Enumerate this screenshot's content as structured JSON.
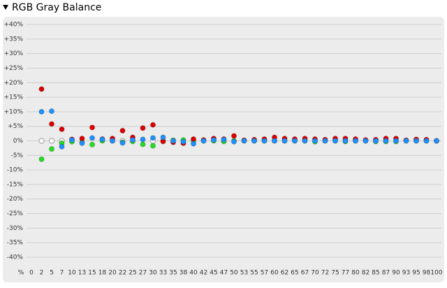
{
  "title": "RGB Gray Balance",
  "chart_data": {
    "type": "scatter",
    "x_axis_label": "%",
    "categories": [
      "0",
      "2",
      "5",
      "7",
      "10",
      "13",
      "15",
      "18",
      "20",
      "22",
      "25",
      "27",
      "30",
      "33",
      "35",
      "38",
      "40",
      "42",
      "45",
      "47",
      "50",
      "53",
      "55",
      "57",
      "60",
      "62",
      "65",
      "67",
      "70",
      "72",
      "75",
      "77",
      "80",
      "82",
      "85",
      "87",
      "90",
      "93",
      "95",
      "98",
      "100"
    ],
    "ylim": [
      -42,
      42
    ],
    "yticks": [
      {
        "value": 40,
        "label": "+40%"
      },
      {
        "value": 35,
        "label": "+35%"
      },
      {
        "value": 30,
        "label": "+30%"
      },
      {
        "value": 25,
        "label": "+25%"
      },
      {
        "value": 20,
        "label": "+20%"
      },
      {
        "value": 15,
        "label": "+15%"
      },
      {
        "value": 10,
        "label": "+10%"
      },
      {
        "value": 5,
        "label": "+5%"
      },
      {
        "value": 0,
        "label": "0%"
      },
      {
        "value": -5,
        "label": "-5%"
      },
      {
        "value": -10,
        "label": "-10%"
      },
      {
        "value": -15,
        "label": "-15%"
      },
      {
        "value": -20,
        "label": "-20%"
      },
      {
        "value": -25,
        "label": "-25%"
      },
      {
        "value": -30,
        "label": "-30%"
      },
      {
        "value": -35,
        "label": "-35%"
      },
      {
        "value": -40,
        "label": "-40%"
      }
    ],
    "grid": true,
    "series": [
      {
        "color": "#ffffff",
        "values": [
          null,
          0,
          0,
          0,
          null,
          null,
          null,
          null,
          null,
          0,
          null,
          null,
          0,
          null,
          null,
          null,
          null,
          null,
          null,
          null,
          null,
          null,
          null,
          null,
          null,
          null,
          null,
          null,
          null,
          null,
          null,
          null,
          null,
          null,
          null,
          null,
          null,
          null,
          null,
          null,
          null
        ]
      },
      {
        "color": "#22dd22",
        "values": [
          null,
          -6.3,
          -2.8,
          -0.8,
          -0.3,
          -0.5,
          -1.3,
          0,
          0,
          -0.5,
          -0.2,
          -1.2,
          -1.7,
          0,
          0.2,
          0.3,
          0,
          0,
          0,
          -0.2,
          0,
          0,
          0,
          0,
          0,
          0,
          0,
          0,
          -0.3,
          0,
          0,
          -0.2,
          0,
          0,
          -0.2,
          -0.2,
          -0.2,
          0,
          0,
          0,
          0
        ]
      },
      {
        "color": "#dd0000",
        "values": [
          null,
          17.8,
          5.8,
          4,
          0.5,
          0.8,
          4.6,
          0.6,
          0.8,
          3.5,
          1.2,
          4.4,
          5.5,
          -0.2,
          -0.5,
          -0.8,
          0.6,
          0.3,
          0.8,
          0.6,
          1.7,
          0.2,
          0.4,
          0.6,
          1.2,
          0.8,
          0.6,
          0.8,
          0.6,
          0.4,
          0.8,
          0.8,
          0.6,
          0.3,
          0.4,
          0.8,
          0.8,
          0.2,
          0.5,
          0.4,
          0
        ]
      },
      {
        "color": "#1e90ff",
        "values": [
          null,
          10,
          10.2,
          -2,
          0.3,
          -0.8,
          1,
          0.5,
          0,
          -0.7,
          0.3,
          0.5,
          1,
          1.2,
          0,
          -0.3,
          -1,
          0,
          0.3,
          0.4,
          -0.3,
          0,
          0,
          0,
          0,
          0,
          0,
          0,
          0,
          0,
          0,
          0,
          0,
          0,
          0,
          0,
          0,
          0,
          0,
          0,
          0
        ]
      }
    ]
  }
}
